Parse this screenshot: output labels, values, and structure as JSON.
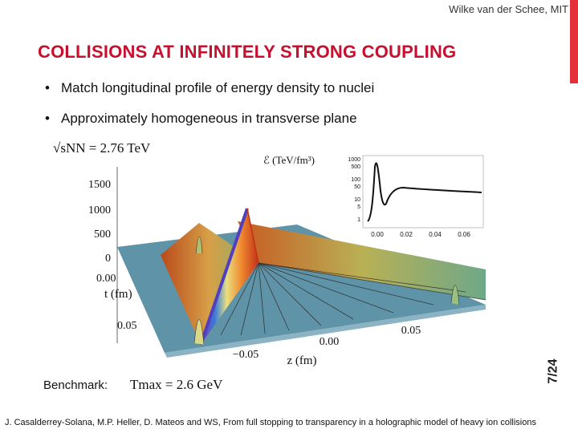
{
  "header": {
    "author": "Wilke van der Schee, MIT",
    "title": "COLLISIONS AT INFINITELY STRONG COUPLING"
  },
  "bullets": [
    "Match longitudinal profile of energy density to nuclei",
    "Approximately homogeneous in transverse plane"
  ],
  "figure": {
    "energy_label": "√sNN = 2.76 TeV",
    "inset_label": "ℰ (TeV/fm³)",
    "energy_axis_ticks": [
      "1500",
      "1000",
      "500",
      "0"
    ],
    "time_axis_label": "t (fm)",
    "time_axis_ticks": [
      "0.00",
      "0.05"
    ],
    "z_axis_label": "z (fm)",
    "z_axis_ticks": [
      "−0.05",
      "0.00",
      "0.05"
    ],
    "inset_y_ticks": [
      "1000",
      "500",
      "100",
      "50",
      "10",
      "5",
      "1"
    ],
    "inset_x_ticks": [
      "0.00",
      "0.02",
      "0.04",
      "0.06"
    ]
  },
  "benchmark": {
    "label": "Benchmark:",
    "formula": "Tmax = 2.6 GeV"
  },
  "slide_number": "7/24",
  "reference": "J. Casalderrey-Solana, M.P. Heller, D. Mateos and WS, From full stopping to transparency in a holographic model of heavy ion collisions",
  "colors": {
    "title": "#c8102e",
    "accent_bar": "#e3303a",
    "surface_base": "#5f93a8"
  }
}
